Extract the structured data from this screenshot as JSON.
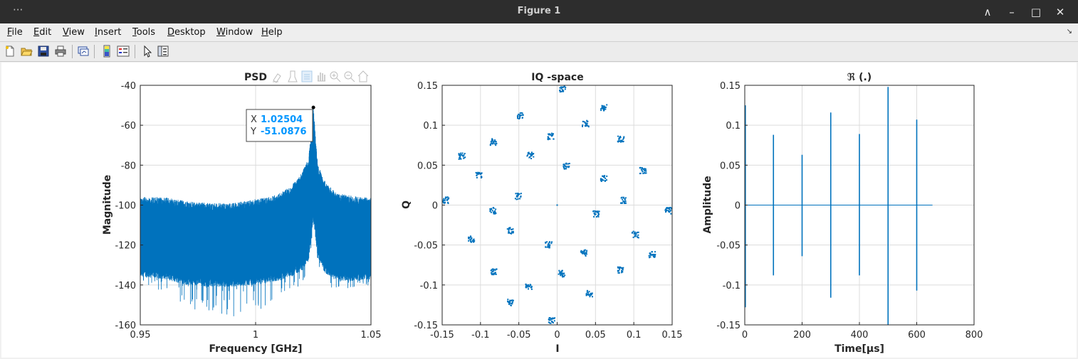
{
  "window": {
    "title": "Figure 1",
    "dots": "···",
    "controls": [
      "∧",
      "–",
      "□",
      "✕"
    ]
  },
  "menubar": {
    "items": [
      {
        "underline": "F",
        "rest": "ile"
      },
      {
        "underline": "E",
        "rest": "dit"
      },
      {
        "underline": "V",
        "rest": "iew"
      },
      {
        "underline": "I",
        "rest": "nsert"
      },
      {
        "underline": "T",
        "rest": "ools"
      },
      {
        "underline": "D",
        "rest": "esktop"
      },
      {
        "underline": "W",
        "rest": "indow"
      },
      {
        "underline": "H",
        "rest": "elp"
      }
    ],
    "overflow_icon": "↘"
  },
  "toolbar": {
    "icons": [
      "new-figure-icon",
      "open-file-icon",
      "save-icon",
      "print-icon",
      "link-plot-icon",
      "colorbar-icon",
      "legend-icon",
      "edit-plot-arrow-icon",
      "property-inspector-icon"
    ]
  },
  "axes_toolbar": {
    "icons": [
      "brush-icon",
      "data-tip-icon",
      "rotate-icon",
      "pan-icon",
      "zoom-in-icon",
      "zoom-out-icon",
      "home-icon"
    ]
  },
  "colors": {
    "series": "#0072bd",
    "datatip_text": "#0096ff",
    "grid": "#dcdcdc"
  },
  "chart_data": [
    {
      "type": "line",
      "title": "PSD",
      "xlabel": "Frequency [GHz]",
      "ylabel": "Magnitude",
      "xlim": [
        0.95,
        1.05
      ],
      "ylim": [
        -160,
        -40
      ],
      "xticks": [
        "0.95",
        "1",
        "1.05"
      ],
      "xtick_values": [
        0.95,
        1.0,
        1.05
      ],
      "yticks": [
        "-40",
        "-60",
        "-80",
        "-100",
        "-120",
        "-140",
        "-160"
      ],
      "ytick_values": [
        -40,
        -60,
        -80,
        -100,
        -120,
        -140,
        -160
      ],
      "grid": true,
      "series": [
        {
          "x": [
            0.95,
            0.96,
            0.97,
            0.98,
            0.99,
            1.0,
            1.005,
            1.01,
            1.015,
            1.02,
            1.023,
            1.02504,
            1.027,
            1.03,
            1.035,
            1.04,
            1.045,
            1.05
          ],
          "upper": [
            -96,
            -96,
            -98,
            -99,
            -99,
            -97,
            -96,
            -94,
            -91,
            -84,
            -76,
            -51.09,
            -80,
            -88,
            -94,
            -95,
            -96,
            -96
          ],
          "lower": [
            -136,
            -137,
            -140,
            -141,
            -141,
            -140,
            -139,
            -138,
            -136,
            -133,
            -128,
            -107,
            -127,
            -134,
            -138,
            -138,
            -138,
            -137
          ],
          "dips": [
            -142,
            -143,
            -152,
            -155,
            -156,
            -154,
            -150,
            -147,
            -143,
            -140,
            -133,
            -110,
            -132,
            -140,
            -143,
            -143,
            -142,
            -140
          ]
        }
      ],
      "datatip": {
        "x_label": "X",
        "x_value": "1.02504",
        "y_label": "Y",
        "y_value": "-51.0876",
        "x": 1.02504,
        "y": -51.0876
      }
    },
    {
      "type": "scatter",
      "title": "IQ -space",
      "xlabel": "I",
      "ylabel": "Q",
      "xlim": [
        -0.15,
        0.15
      ],
      "ylim": [
        -0.15,
        0.15
      ],
      "xticks": [
        "-0.15",
        "-0.1",
        "-0.05",
        "0",
        "0.05",
        "0.1",
        "0.15"
      ],
      "xtick_values": [
        -0.15,
        -0.1,
        -0.05,
        0,
        0.05,
        0.1,
        0.15
      ],
      "yticks": [
        "0.15",
        "0.1",
        "0.05",
        "0",
        "-0.05",
        "-0.1",
        "-0.15"
      ],
      "ytick_values": [
        0.15,
        0.1,
        0.05,
        0,
        -0.05,
        -0.1,
        -0.15
      ],
      "grid": true,
      "points": [
        [
          0.007,
          0.145
        ],
        [
          0.061,
          0.122
        ],
        [
          -0.048,
          0.112
        ],
        [
          0.037,
          0.102
        ],
        [
          -0.008,
          0.086
        ],
        [
          0.083,
          0.083
        ],
        [
          -0.083,
          0.079
        ],
        [
          -0.124,
          0.061
        ],
        [
          -0.035,
          0.062
        ],
        [
          -0.102,
          0.038
        ],
        [
          0.012,
          0.049
        ],
        [
          0.112,
          0.043
        ],
        [
          0.061,
          0.033
        ],
        [
          -0.145,
          0.006
        ],
        [
          -0.051,
          0.011
        ],
        [
          0.086,
          0.006
        ],
        [
          0.0,
          0.0
        ],
        [
          -0.084,
          -0.007
        ],
        [
          0.145,
          -0.007
        ],
        [
          0.051,
          -0.011
        ],
        [
          -0.061,
          -0.032
        ],
        [
          0.102,
          -0.037
        ],
        [
          -0.112,
          -0.043
        ],
        [
          -0.011,
          -0.05
        ],
        [
          0.035,
          -0.06
        ],
        [
          0.124,
          -0.062
        ],
        [
          -0.083,
          -0.083
        ],
        [
          0.083,
          -0.081
        ],
        [
          0.006,
          -0.086
        ],
        [
          -0.037,
          -0.103
        ],
        [
          0.042,
          -0.111
        ],
        [
          -0.061,
          -0.122
        ],
        [
          -0.007,
          -0.145
        ]
      ]
    },
    {
      "type": "line",
      "title": "ℜ (.)",
      "xlabel": "Time[μs]",
      "ylabel": "Amplitude",
      "xlim": [
        0,
        800
      ],
      "ylim": [
        -0.15,
        0.15
      ],
      "xticks": [
        "0",
        "200",
        "400",
        "600",
        "800"
      ],
      "xtick_values": [
        0,
        200,
        400,
        600,
        800
      ],
      "yticks": [
        "0.15",
        "0.1",
        "0.05",
        "0",
        "-0.05",
        "-0.1",
        "-0.15"
      ],
      "ytick_values": [
        0.15,
        0.1,
        0.05,
        0,
        -0.05,
        -0.1,
        -0.15
      ],
      "grid": true,
      "baseline_x": [
        0,
        655
      ],
      "pulses": [
        {
          "t": 2,
          "max": 0.125,
          "min": -0.128
        },
        {
          "t": 100,
          "max": 0.088,
          "min": -0.088
        },
        {
          "t": 200,
          "max": 0.063,
          "min": -0.064
        },
        {
          "t": 300,
          "max": 0.116,
          "min": -0.116
        },
        {
          "t": 400,
          "max": 0.089,
          "min": -0.088
        },
        {
          "t": 500,
          "max": 0.148,
          "min": -0.15
        },
        {
          "t": 600,
          "max": 0.107,
          "min": -0.107
        }
      ]
    }
  ]
}
